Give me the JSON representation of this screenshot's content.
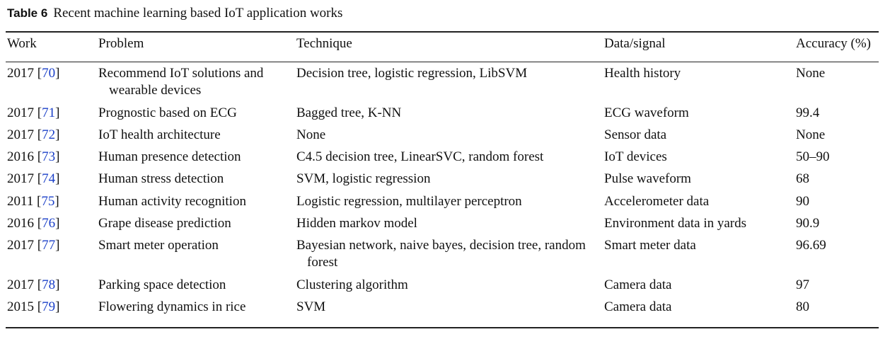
{
  "caption": {
    "label": "Table 6",
    "text": "Recent machine learning based IoT application works"
  },
  "headers": [
    "Work",
    "Problem",
    "Technique",
    "Data/signal",
    "Accuracy (%)"
  ],
  "rows": [
    {
      "year": "2017",
      "ref": "70",
      "problem": "Recommend IoT solutions and wearable devices",
      "technique": "Decision tree, logistic regression, LibSVM",
      "data": "Health history",
      "accuracy": "None"
    },
    {
      "year": "2017",
      "ref": "71",
      "problem": "Prognostic based on ECG",
      "technique": "Bagged tree, K-NN",
      "data": "ECG waveform",
      "accuracy": "99.4"
    },
    {
      "year": "2017",
      "ref": "72",
      "problem": "IoT health architecture",
      "technique": "None",
      "data": "Sensor data",
      "accuracy": "None"
    },
    {
      "year": "2016",
      "ref": "73",
      "problem": "Human presence detection",
      "technique": "C4.5 decision tree, LinearSVC, random forest",
      "data": "IoT devices",
      "accuracy": "50–90"
    },
    {
      "year": "2017",
      "ref": "74",
      "problem": "Human stress detection",
      "technique": "SVM, logistic regression",
      "data": "Pulse waveform",
      "accuracy": "68"
    },
    {
      "year": "2011",
      "ref": "75",
      "problem": "Human activity recognition",
      "technique": "Logistic regression, multilayer perceptron",
      "data": "Accelerometer data",
      "accuracy": "90"
    },
    {
      "year": "2016",
      "ref": "76",
      "problem": "Grape disease prediction",
      "technique": "Hidden markov model",
      "data": "Environment data in yards",
      "accuracy": "90.9"
    },
    {
      "year": "2017",
      "ref": "77",
      "problem": "Smart meter operation",
      "technique": "Bayesian network, naive bayes, decision tree, random forest",
      "data": "Smart meter data",
      "accuracy": "96.69"
    },
    {
      "year": "2017",
      "ref": "78",
      "problem": "Parking space detection",
      "technique": "Clustering algorithm",
      "data": "Camera data",
      "accuracy": "97"
    },
    {
      "year": "2015",
      "ref": "79",
      "problem": "Flowering dynamics in rice",
      "technique": "SVM",
      "data": "Camera data",
      "accuracy": "80"
    }
  ]
}
